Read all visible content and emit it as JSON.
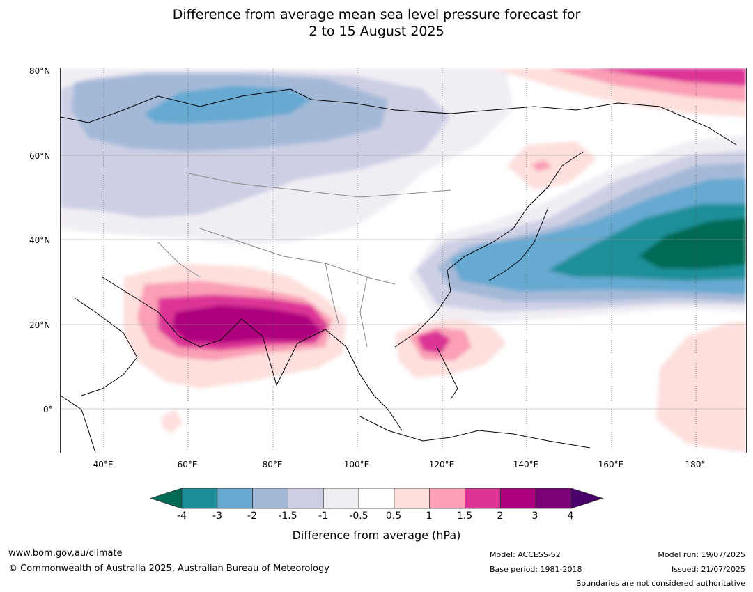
{
  "title": {
    "line1": "Difference from average mean sea level pressure forecast for",
    "line2": "2 to 15 August 2025"
  },
  "axes": {
    "lat_labels": [
      "80°N",
      "60°N",
      "40°N",
      "20°N",
      "0°"
    ],
    "lon_labels": [
      "40°E",
      "60°E",
      "80°E",
      "100°E",
      "120°E",
      "140°E",
      "160°E",
      "180°"
    ]
  },
  "colorbar": {
    "label": "Difference from average (hPa)",
    "ticks": [
      "-4",
      "-3",
      "-2",
      "-1.5",
      "-1",
      "-0.5",
      "0.5",
      "1",
      "1.5",
      "2",
      "3",
      "4"
    ],
    "colors": {
      "lt_-4": "#006a55",
      "-4_-3": "#1a8f98",
      "-3_-2": "#66a9d1",
      "-2_-1.5": "#a4b9d8",
      "-1.5_-1": "#cdd0e5",
      "-1_-0.5": "#f1edf4",
      "-0.5_0.5": "#ffffff",
      "0.5_1": "#fde0dd",
      "1_1.5": "#fa9fb5",
      "1.5_2": "#dd3497",
      "2_3": "#ae017e",
      "3_4": "#7a0177",
      "gt_4": "#49006a"
    }
  },
  "footer": {
    "url": "www.bom.gov.au/climate",
    "copyright": "© Commonwealth of Australia 2025, Australian Bureau of Meteorology",
    "model": "Model: ACCESS-S2",
    "base_period": "Base period: 1981-2018",
    "model_run": "Model run: 19/07/2025",
    "issued": "Issued: 21/07/2025",
    "boundaries_note": "Boundaries are not considered authoritative"
  }
}
